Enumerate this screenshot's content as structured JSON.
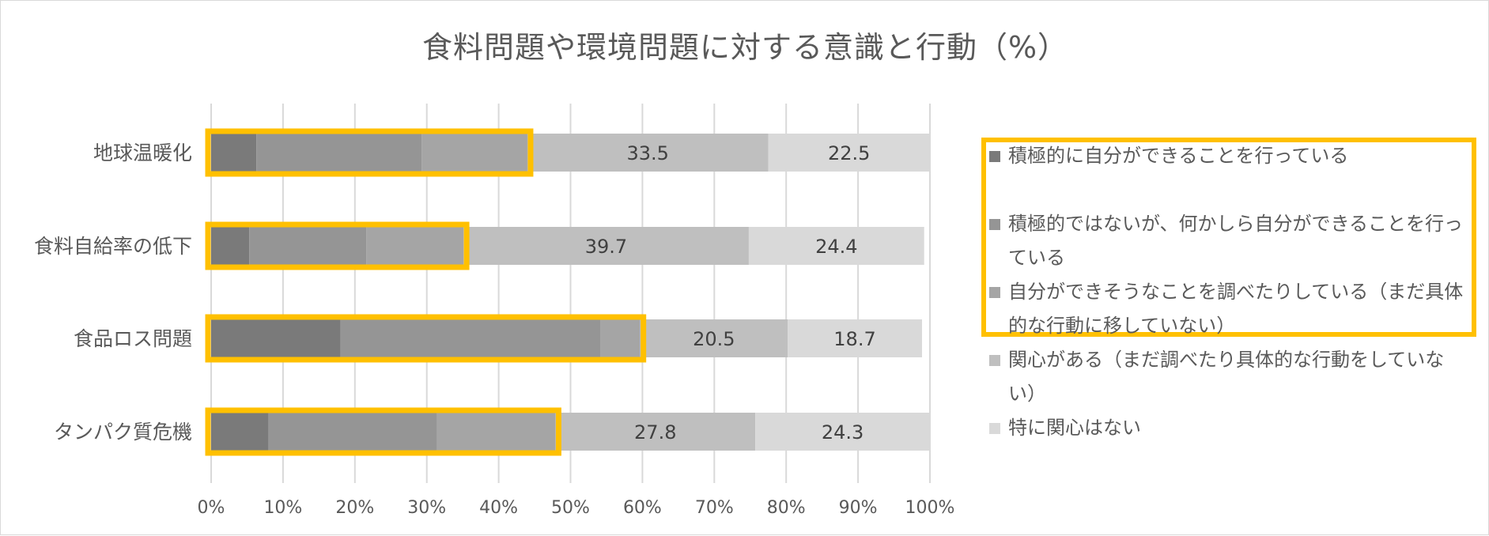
{
  "chart_data": {
    "type": "bar",
    "orientation": "horizontal",
    "stacked": "percent",
    "title": "食料問題や環境問題に対する意識と行動（%）",
    "categories": [
      "地球温暖化",
      "食料自給率の低下",
      "食品ロス問題",
      "タンパク質危機"
    ],
    "x_ticks": [
      "0%",
      "10%",
      "20%",
      "30%",
      "40%",
      "50%",
      "60%",
      "70%",
      "80%",
      "90%",
      "100%"
    ],
    "xlim": [
      0,
      100
    ],
    "grid": true,
    "legend_position": "right",
    "series": [
      {
        "name": "積極的に自分ができることを行っている",
        "values": [
          6.3,
          5.3,
          18.0,
          8.0
        ],
        "color": "#7a7a7a"
      },
      {
        "name": "積極的ではないが、何かしら自分ができることを行っている",
        "values": [
          23.0,
          16.3,
          36.2,
          23.4
        ],
        "color": "#959595"
      },
      {
        "name": "自分ができそうなことを調べたりしている（まだ具体的な行動に移していない）",
        "values": [
          14.7,
          13.5,
          5.5,
          16.5
        ],
        "color": "#a5a5a5"
      },
      {
        "name": "関心がある（まだ調べたり具体的な行動をしていない）",
        "values": [
          33.5,
          39.7,
          20.5,
          27.8
        ],
        "color": "#bfbfbf",
        "labels": [
          "33.5",
          "39.7",
          "20.5",
          "27.8"
        ]
      },
      {
        "name": "特に関心はない",
        "values": [
          22.5,
          24.4,
          18.7,
          24.3
        ],
        "color": "#d9d9d9",
        "labels": [
          "22.5",
          "24.4",
          "18.7",
          "24.3"
        ]
      }
    ],
    "highlight_color": "#ffc000",
    "highlighted_series_count": 3
  }
}
